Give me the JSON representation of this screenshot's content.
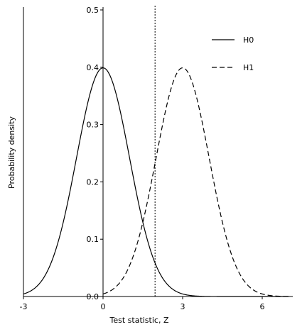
{
  "chart_data": {
    "type": "line",
    "title": "",
    "xlabel": "Test statistic, Z",
    "ylabel": "Probability density",
    "xlim": [
      -3,
      7
    ],
    "ylim": [
      0,
      0.5
    ],
    "x_ticks": [
      "-3",
      "0",
      "3",
      "6"
    ],
    "y_ticks": [
      "0.0",
      "0.1",
      "0.2",
      "0.3",
      "0.4",
      "0.5"
    ],
    "grid": false,
    "legend_position": "top-right",
    "critical_value": 1.96,
    "series": [
      {
        "name": "H0",
        "line_style": "solid",
        "color": "#000000",
        "x": [
          -3.0,
          -2.5,
          -2.0,
          -1.5,
          -1.0,
          -0.5,
          0.0,
          0.5,
          1.0,
          1.5,
          2.0,
          2.5,
          3.0,
          3.5,
          4.0,
          4.5,
          5.0,
          5.5,
          6.0,
          6.5,
          7.0
        ],
        "y": [
          0.004,
          0.018,
          0.054,
          0.13,
          0.242,
          0.352,
          0.399,
          0.352,
          0.242,
          0.13,
          0.054,
          0.018,
          0.004,
          0.001,
          0.0,
          0.0,
          0.0,
          0.0,
          0.0,
          0.0,
          0.0
        ]
      },
      {
        "name": "H1",
        "line_style": "dashed",
        "color": "#000000",
        "x": [
          0.0,
          0.5,
          1.0,
          1.5,
          2.0,
          2.5,
          3.0,
          3.5,
          4.0,
          4.5,
          5.0,
          5.5,
          6.0,
          6.5,
          7.0
        ],
        "y": [
          0.004,
          0.018,
          0.054,
          0.13,
          0.242,
          0.352,
          0.399,
          0.352,
          0.242,
          0.13,
          0.054,
          0.018,
          0.004,
          0.001,
          0.0
        ]
      }
    ]
  }
}
